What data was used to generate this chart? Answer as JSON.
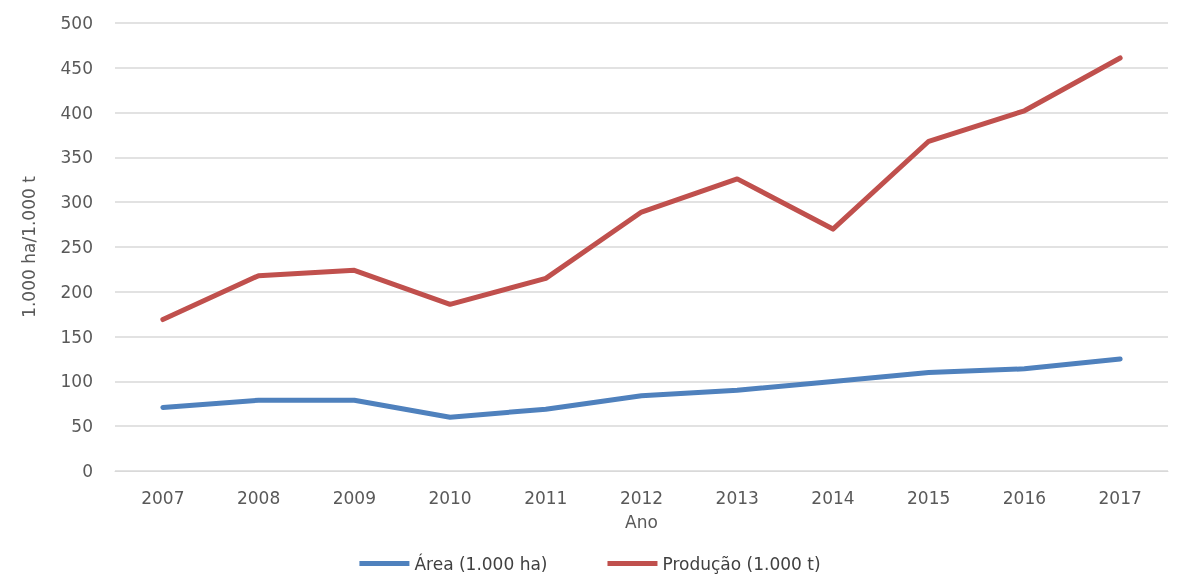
{
  "chart_data": {
    "type": "line",
    "xlabel": "Ano",
    "ylabel": "1.000 ha/1.000 t",
    "categories": [
      "2007",
      "2008",
      "2009",
      "2010",
      "2011",
      "2012",
      "2013",
      "2014",
      "2015",
      "2016",
      "2017"
    ],
    "series": [
      {
        "name": "Área (1.000 ha)",
        "color": "#4f81bd",
        "values": [
          71,
          79,
          79,
          60,
          69,
          84,
          90,
          100,
          110,
          114,
          125
        ]
      },
      {
        "name": "Produção (1.000 t)",
        "color": "#c0504d",
        "values": [
          169,
          218,
          224,
          186,
          215,
          289,
          326,
          270,
          368,
          402,
          461
        ]
      }
    ],
    "ylim": [
      0,
      500
    ],
    "yticks": [
      0,
      50,
      100,
      150,
      200,
      250,
      300,
      350,
      400,
      450,
      500
    ],
    "grid": "y",
    "legend": "bottom",
    "marker": "none",
    "line_style": "solid"
  }
}
